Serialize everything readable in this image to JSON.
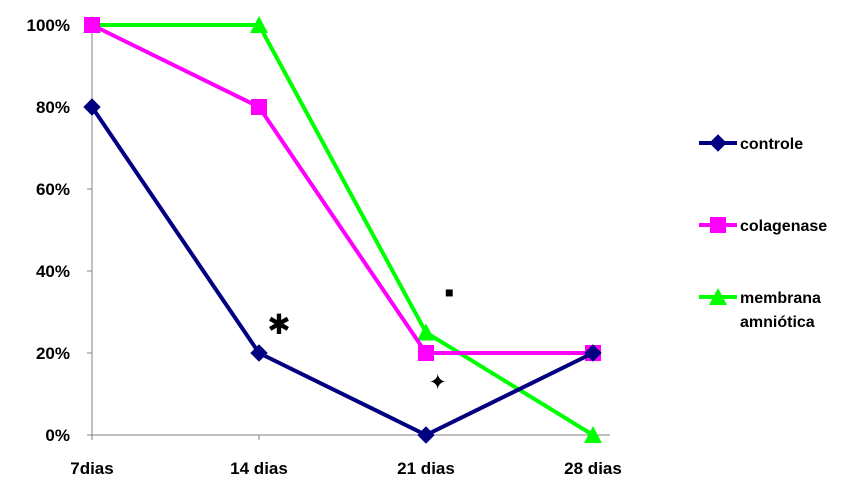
{
  "chart_data": {
    "type": "line",
    "title": "",
    "xlabel": "",
    "ylabel": "",
    "categories": [
      "7dias",
      "14 dias",
      "21 dias",
      "28 dias"
    ],
    "y_ticks": [
      "0%",
      "20%",
      "40%",
      "60%",
      "80%",
      "100%"
    ],
    "ylim": [
      0,
      100
    ],
    "grid": false,
    "legend_position": "right",
    "series": [
      {
        "name": "controle",
        "values": [
          80,
          20,
          0,
          20
        ],
        "color": "#000080",
        "marker": "diamond"
      },
      {
        "name": "colagenase",
        "values": [
          100,
          80,
          20,
          20
        ],
        "color": "#FF00FF",
        "marker": "square"
      },
      {
        "name": "membrana amniótica",
        "legend_lines": [
          "membrana",
          "amniótica"
        ],
        "values": [
          100,
          100,
          25,
          0
        ],
        "color": "#00FF00",
        "marker": "triangle"
      }
    ],
    "annotations": [
      {
        "text": "✱",
        "x_index": 1.12,
        "y": 27
      },
      {
        "text": "▪",
        "x_index": 2.14,
        "y": 35
      },
      {
        "text": "✦",
        "x_index": 2.07,
        "y": 13
      }
    ]
  }
}
